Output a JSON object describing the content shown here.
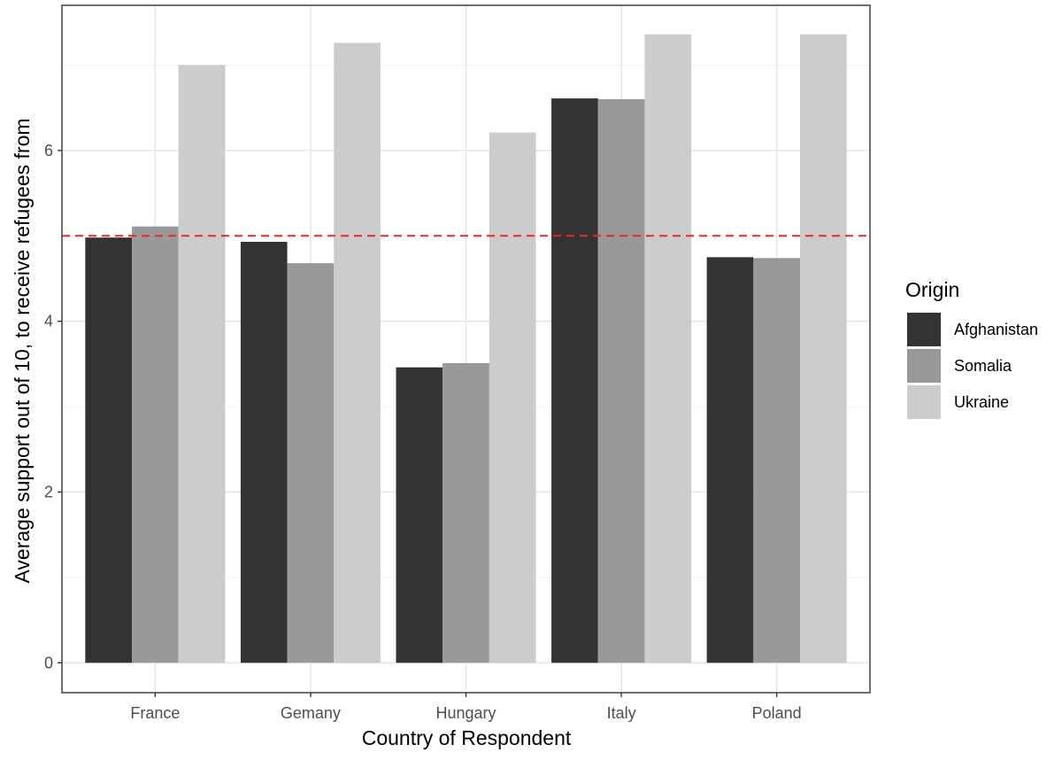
{
  "chart_data": {
    "type": "bar",
    "title": "",
    "xlabel": "Country of Respondent",
    "ylabel": "Average support out of 10, to receive refugees from",
    "categories": [
      "France",
      "Gemany",
      "Hungary",
      "Italy",
      "Poland"
    ],
    "series": [
      {
        "name": "Afghanistan",
        "color": "#333333",
        "values": [
          4.98,
          4.93,
          3.46,
          6.61,
          4.75
        ]
      },
      {
        "name": "Somalia",
        "color": "#999999",
        "values": [
          5.11,
          4.68,
          3.51,
          6.6,
          4.74
        ]
      },
      {
        "name": "Ukraine",
        "color": "#cccccc",
        "values": [
          7.0,
          7.26,
          6.21,
          7.36,
          7.36
        ]
      }
    ],
    "ylim": [
      -0.35,
      7.7
    ],
    "yticks": [
      0,
      2,
      4,
      6
    ],
    "reference_line": {
      "value": 5,
      "color": "#e32a2a",
      "style": "dashed"
    },
    "grid": true,
    "legend": {
      "title": "Origin",
      "position": "right"
    }
  }
}
